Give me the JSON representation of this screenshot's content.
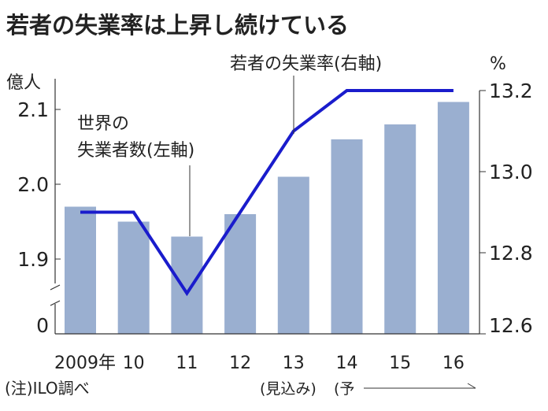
{
  "chart_data": {
    "type": "bar+line",
    "title": "若者の失業率は上昇し続けている",
    "categories": [
      "2009年",
      "10",
      "11",
      "12",
      "13",
      "14",
      "15",
      "16"
    ],
    "left_axis": {
      "unit": "億人",
      "ticks": [
        "0",
        "1.9",
        "2.0",
        "2.1"
      ],
      "range": [
        1.85,
        2.15
      ],
      "broken": true
    },
    "right_axis": {
      "unit": "%",
      "ticks": [
        "12.6",
        "12.8",
        "13.0",
        "13.2"
      ],
      "range": [
        12.6,
        13.2
      ]
    },
    "series": [
      {
        "name": "世界の失業者数(左軸)",
        "type": "bar",
        "axis": "left",
        "color": "#9aafd0",
        "values": [
          1.97,
          1.95,
          1.93,
          1.96,
          2.01,
          2.06,
          2.08,
          2.11
        ]
      },
      {
        "name": "若者の失業率(右軸)",
        "type": "line",
        "axis": "right",
        "color": "#1a1ccc",
        "values": [
          12.9,
          12.9,
          12.7,
          12.9,
          13.1,
          13.2,
          13.2,
          13.2
        ]
      }
    ],
    "bar_label_lines": [
      "世界の",
      "失業者数(左軸)"
    ],
    "line_label": "若者の失業率(右軸)",
    "note": "(注)ILO調べ",
    "estimate_label": "(見込み)",
    "forecast_label": "(予",
    "grid": false
  }
}
